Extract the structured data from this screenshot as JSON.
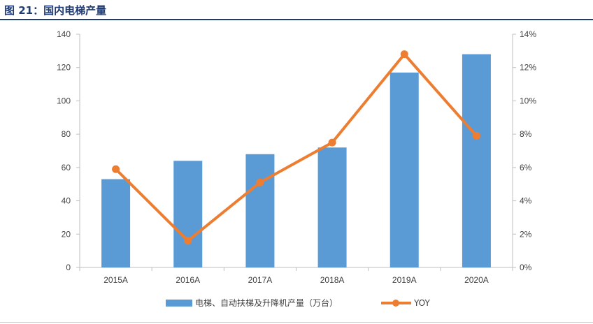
{
  "figure": {
    "title": "图 21：国内电梯产量"
  },
  "chart_data": {
    "type": "bar+line",
    "categories": [
      "2015A",
      "2016A",
      "2017A",
      "2018A",
      "2019A",
      "2020A"
    ],
    "series": [
      {
        "name": "电梯、自动扶梯及升降机产量（万台）",
        "type": "bar",
        "axis": "left",
        "color": "#5b9bd5",
        "values": [
          53,
          64,
          68,
          72,
          117,
          128
        ]
      },
      {
        "name": "YOY",
        "type": "line",
        "axis": "right",
        "color": "#ed7d31",
        "values": [
          5.9,
          1.6,
          5.1,
          7.5,
          12.8,
          7.9
        ]
      }
    ],
    "left_axis": {
      "ylim": [
        0,
        140
      ],
      "ticks": [
        0,
        20,
        40,
        60,
        80,
        100,
        120,
        140
      ],
      "tick_labels": [
        "0",
        "20",
        "40",
        "60",
        "80",
        "100",
        "120",
        "140"
      ]
    },
    "right_axis": {
      "ylim": [
        0,
        14
      ],
      "ticks": [
        0,
        2,
        4,
        6,
        8,
        10,
        12,
        14
      ],
      "tick_labels": [
        "0%",
        "2%",
        "4%",
        "6%",
        "8%",
        "10%",
        "12%",
        "14%"
      ]
    },
    "grid": false,
    "legend_position": "bottom"
  }
}
